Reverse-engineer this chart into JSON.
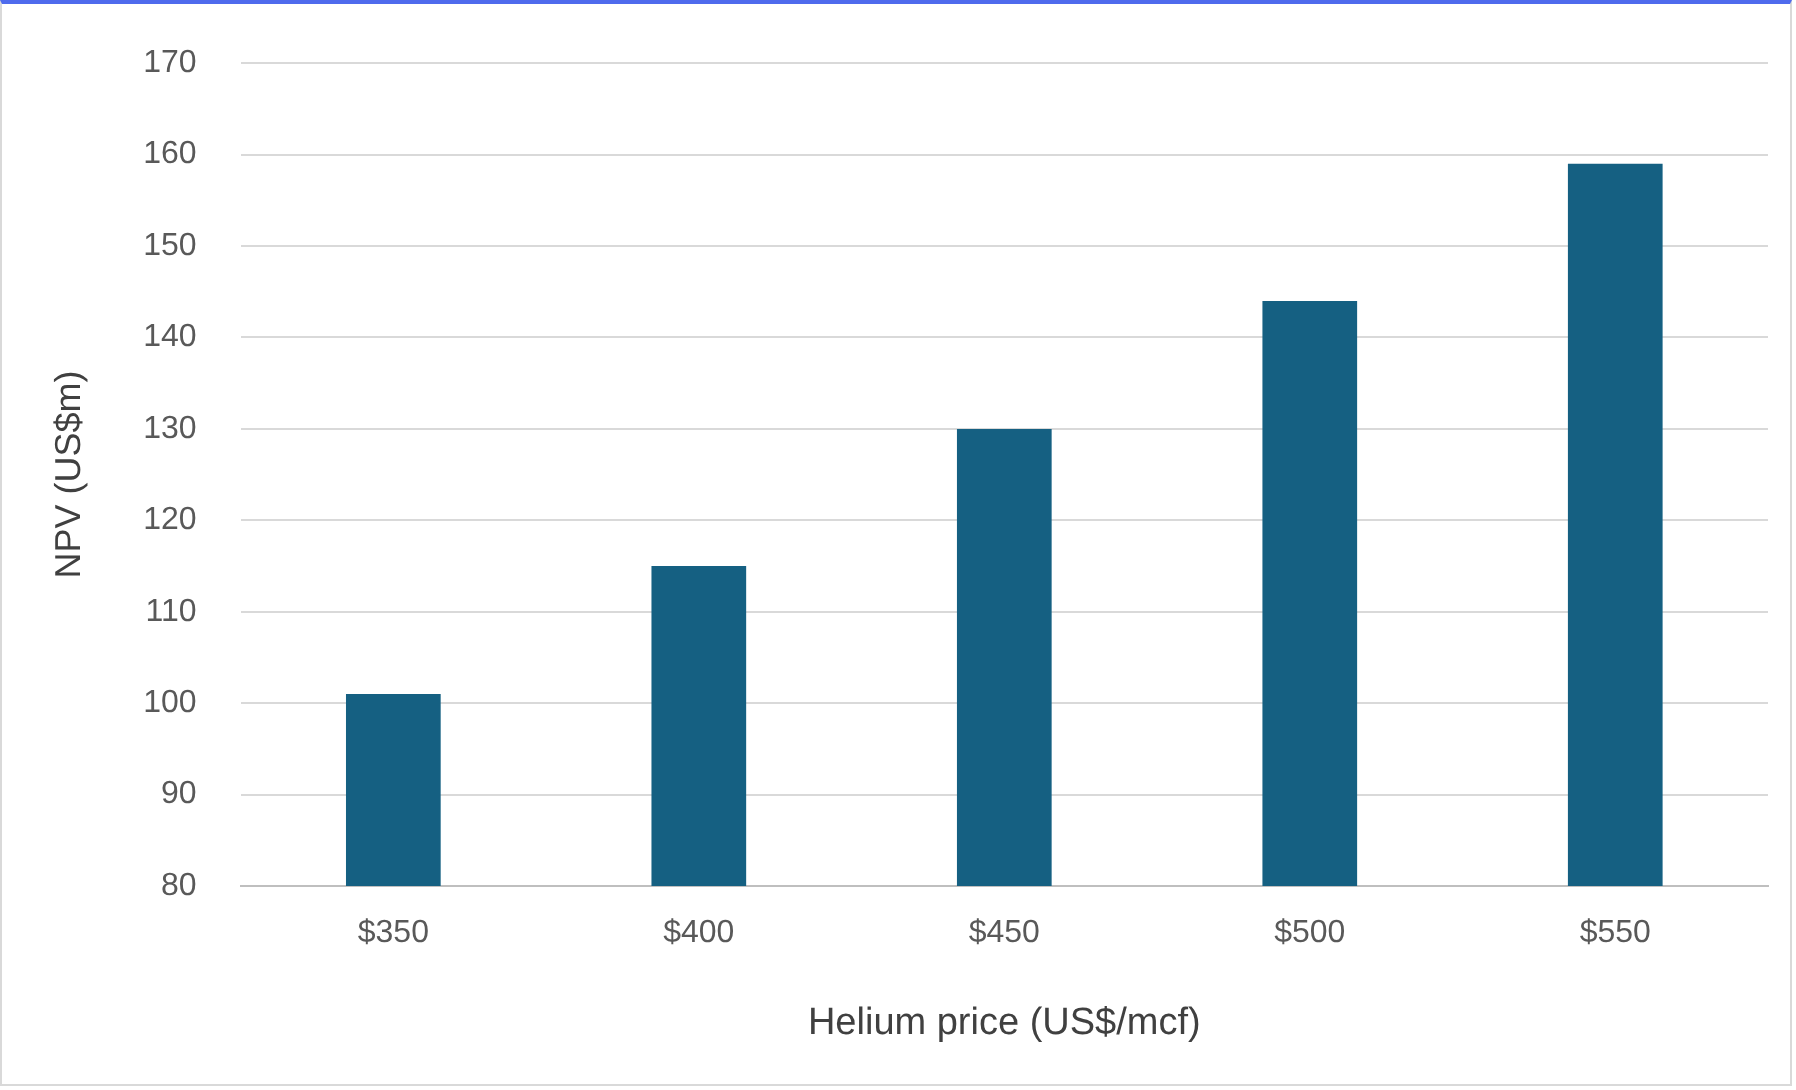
{
  "chart_data": {
    "type": "bar",
    "xlabel": "Helium price (US$/mcf)",
    "ylabel": "NPV (US$m)",
    "categories": [
      "$350",
      "$400",
      "$450",
      "$500",
      "$550"
    ],
    "values": [
      101,
      115,
      130,
      144,
      159
    ],
    "color": "#156082",
    "ylim": [
      80,
      170
    ],
    "yticks": [
      80,
      90,
      100,
      110,
      120,
      130,
      140,
      150,
      160,
      170
    ],
    "grid": "y",
    "legend": false
  }
}
